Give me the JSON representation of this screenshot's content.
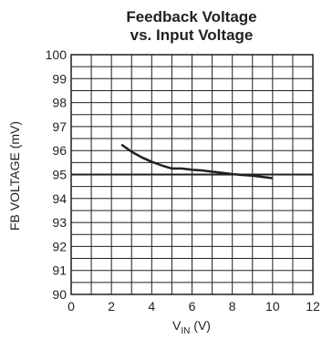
{
  "chart_data": {
    "type": "line",
    "title_line1": "Feedback Voltage",
    "title_line2": "vs. Input Voltage",
    "xlabel_main": "V",
    "xlabel_sub": "IN",
    "xlabel_unit": " (V)",
    "ylabel": "FB VOLTAGE (mV)",
    "xlim": [
      0,
      12
    ],
    "ylim": [
      90,
      100
    ],
    "xticks": [
      0,
      2,
      4,
      6,
      8,
      10,
      12
    ],
    "yticks": [
      90,
      91,
      92,
      93,
      94,
      95,
      96,
      97,
      98,
      99,
      100
    ],
    "x_minor_step": 1,
    "y_minor_step": 0.5,
    "grid": true,
    "emphasized_gridline_y": 95,
    "series": [
      {
        "x": [
          2.5,
          3.0,
          3.5,
          4.0,
          4.5,
          5.0,
          5.5,
          6.0,
          6.5,
          7.0,
          7.5,
          8.0,
          8.5,
          9.0,
          9.5,
          10.0
        ],
        "y": [
          96.25,
          95.95,
          95.72,
          95.53,
          95.38,
          95.25,
          95.25,
          95.2,
          95.17,
          95.12,
          95.07,
          95.02,
          94.98,
          94.95,
          94.9,
          94.85
        ]
      }
    ],
    "colors": {
      "line": "#231f20",
      "grid": "#231f20",
      "text": "#231f20"
    }
  }
}
